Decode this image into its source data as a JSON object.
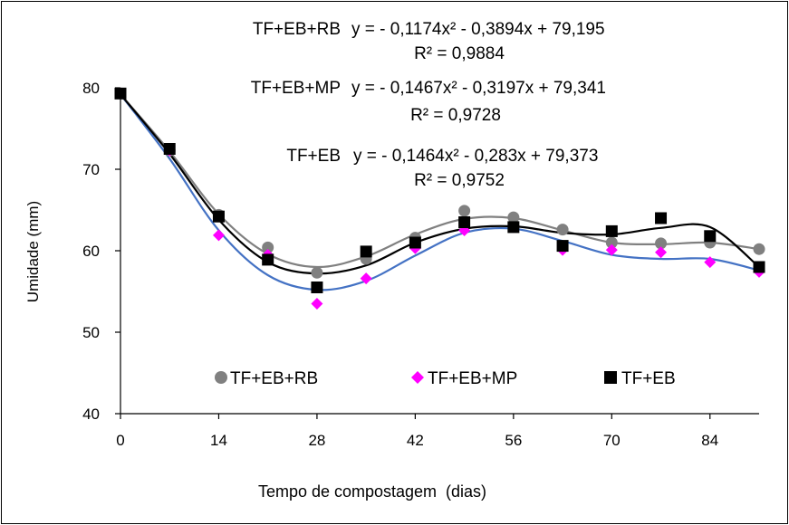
{
  "chart_data": {
    "type": "scatter",
    "title": "",
    "xlabel": "Tempo de compostagem  (dias)",
    "ylabel": "Umidade (mm)",
    "xlim": [
      0,
      91
    ],
    "ylim": [
      40,
      80
    ],
    "x_ticks": [
      0,
      14,
      28,
      42,
      56,
      70,
      84
    ],
    "y_ticks": [
      40,
      50,
      60,
      70,
      80
    ],
    "x_tick_labels": [
      "0",
      "14",
      "28",
      "42",
      "56",
      "70",
      "84"
    ],
    "y_tick_labels": [
      "40",
      "50",
      "60",
      "70",
      "80"
    ],
    "grid": false,
    "legend_placement": "bottom-center",
    "series": [
      {
        "name": "TF+EB+RB",
        "marker": "circle",
        "color": "#808080",
        "x": [
          0,
          7,
          14,
          21,
          28,
          35,
          42,
          49,
          56,
          63,
          70,
          77,
          84,
          91
        ],
        "y": [
          79.3,
          72.3,
          64.4,
          60.4,
          57.3,
          59.0,
          61.6,
          64.9,
          64.1,
          62.6,
          61.0,
          60.9,
          61.0,
          60.2
        ],
        "curve": [
          79.2,
          72.2,
          64.5,
          59.6,
          58.0,
          59.3,
          62.0,
          63.9,
          64.0,
          62.5,
          61.0,
          60.8,
          61.0,
          60.2
        ]
      },
      {
        "name": "TF+EB+MP",
        "marker": "diamond",
        "color": "#FF00FF",
        "x": [
          0,
          7,
          14,
          21,
          28,
          35,
          42,
          49,
          56,
          63,
          70,
          77,
          84,
          91
        ],
        "y": [
          79.3,
          72.3,
          61.9,
          59.5,
          53.5,
          56.6,
          60.3,
          62.5,
          62.9,
          60.1,
          60.1,
          59.8,
          58.6,
          57.4
        ],
        "curve": [
          79.2,
          71.3,
          62.5,
          57.0,
          55.2,
          56.3,
          59.4,
          62.2,
          62.7,
          61.2,
          59.5,
          59.0,
          59.0,
          57.6
        ]
      },
      {
        "name": "TF+EB",
        "marker": "square",
        "color": "#000000",
        "x": [
          0,
          7,
          14,
          21,
          28,
          35,
          42,
          49,
          56,
          63,
          70,
          77,
          84,
          91
        ],
        "y": [
          79.3,
          72.5,
          64.2,
          58.9,
          55.5,
          59.9,
          61.0,
          63.5,
          62.9,
          60.6,
          62.4,
          64.0,
          61.8,
          58.0
        ],
        "curve": [
          79.2,
          71.9,
          63.8,
          58.6,
          57.2,
          58.2,
          61.0,
          62.7,
          63.0,
          62.2,
          62.0,
          62.8,
          62.9,
          58.0
        ]
      }
    ],
    "annotations": [
      {
        "series": "TF+EB+RB",
        "equation": "y = - 0,1174x² - 0,3894x + 79,195",
        "r2": "R² = 0,9884"
      },
      {
        "series": "TF+EB+MP",
        "equation": "y = - 0,1467x² - 0,3197x + 79,341",
        "r2": "R² = 0,9728"
      },
      {
        "series": "TF+EB",
        "equation": "y = - 0,1464x² - 0,283x + 79,373",
        "r2": "R² = 0,9752"
      }
    ]
  }
}
